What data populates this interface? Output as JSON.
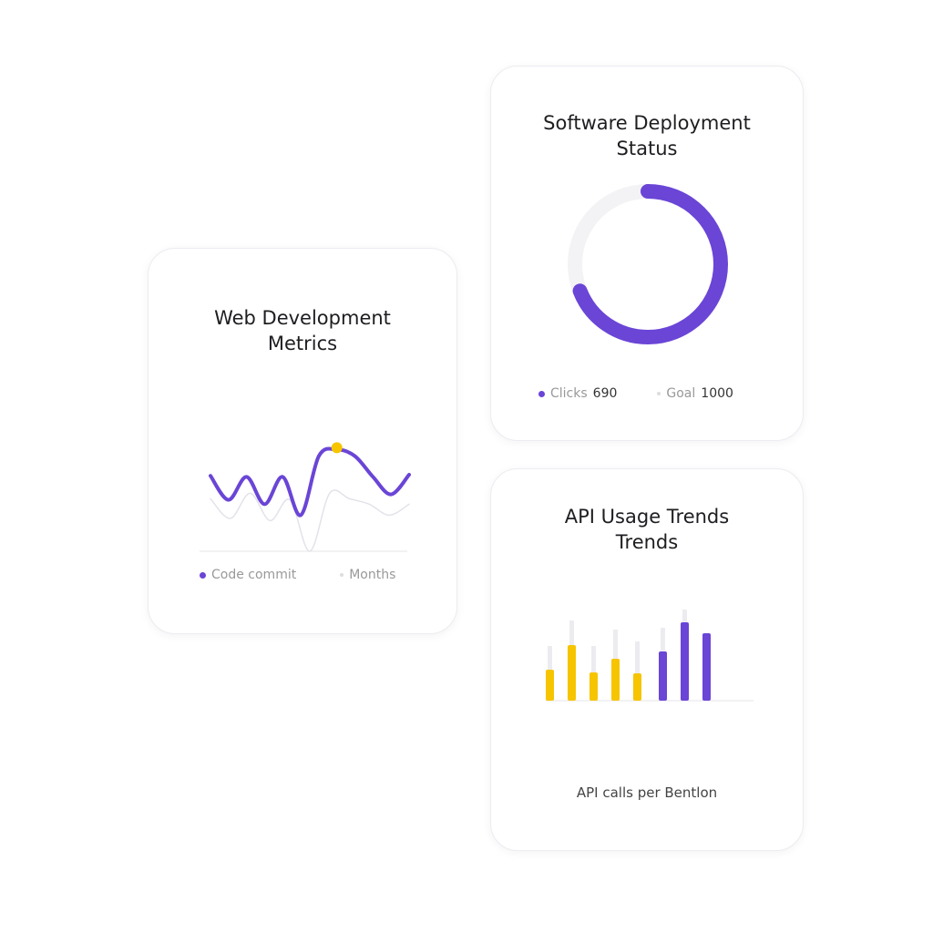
{
  "colors": {
    "purple": "#6a45d6",
    "yellow": "#f7c400",
    "ghost": "#ececf0",
    "gray_line": "#e2e2ea"
  },
  "chart_data": [
    {
      "type": "line",
      "title": "Web Development Metrics",
      "title_lines": [
        "Web Development",
        "Metrics"
      ],
      "legend": [
        "Code commit",
        "Months"
      ],
      "series": [
        {
          "name": "Code commit",
          "color": "#6a45d6",
          "values": [
            69,
            47,
            68,
            43,
            68,
            33,
            87,
            93,
            87,
            68,
            52,
            70
          ],
          "highlight_index": 7
        },
        {
          "name": "Months",
          "color": "#e2e2ea",
          "values": [
            48,
            30,
            53,
            28,
            47,
            0,
            53,
            48,
            43,
            33,
            43
          ]
        }
      ],
      "ylim": [
        0,
        100
      ],
      "grid": false
    },
    {
      "type": "pie",
      "title": "Software Deployment Status",
      "title_lines": [
        "Software Deployment",
        "Status"
      ],
      "donut": true,
      "value": 690,
      "goal": 1000,
      "legend": [
        {
          "label": "Clicks",
          "value": "690"
        },
        {
          "label": "Goal",
          "value": "1000"
        }
      ]
    },
    {
      "type": "bar",
      "title": "API Usage Trends Trends",
      "title_lines": [
        "API Usage Trends",
        "Trends"
      ],
      "values": [
        34,
        61,
        31,
        46,
        30,
        54,
        86,
        74
      ],
      "background_values": [
        60,
        88,
        60,
        78,
        65,
        80,
        100,
        null
      ],
      "colors": [
        "#f7c400",
        "#f7c400",
        "#f7c400",
        "#f7c400",
        "#f7c400",
        "#6a45d6",
        "#6a45d6",
        "#6a45d6"
      ],
      "ylim": [
        0,
        100
      ],
      "xlabel": "API calls per Bentlon"
    }
  ]
}
